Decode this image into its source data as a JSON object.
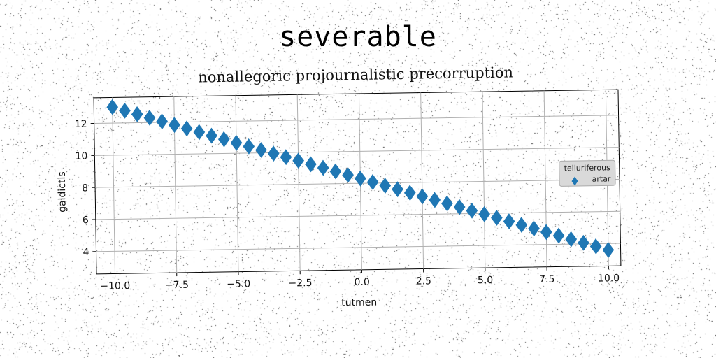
{
  "page": {
    "suptitle": "severable"
  },
  "chart_data": {
    "type": "scatter",
    "title": "nonallegoric projournalistic precorruption",
    "xlabel": "tutmen",
    "ylabel": "galdictis",
    "xlim": [
      -10.75,
      10.5
    ],
    "ylim": [
      2.6,
      13.6
    ],
    "xticks": [
      -10.0,
      -7.5,
      -5.0,
      -2.5,
      0.0,
      2.5,
      5.0,
      7.5,
      10.0
    ],
    "xtick_labels": [
      "−10.0",
      "−7.5",
      "−5.0",
      "−2.5",
      "0.0",
      "2.5",
      "5.0",
      "7.5",
      "10.0"
    ],
    "yticks": [
      4,
      6,
      8,
      10,
      12
    ],
    "ytick_labels": [
      "4",
      "6",
      "8",
      "10",
      "12"
    ],
    "grid": true,
    "legend": {
      "title": "telluriferous",
      "placement": "center-right"
    },
    "marker": "diamond",
    "series": [
      {
        "name": "artar",
        "color": "#1f77b4",
        "x_start": -10.0,
        "x_end": 10.0,
        "n": 41,
        "y_start": 13.0,
        "y_end": 3.6
      }
    ]
  }
}
